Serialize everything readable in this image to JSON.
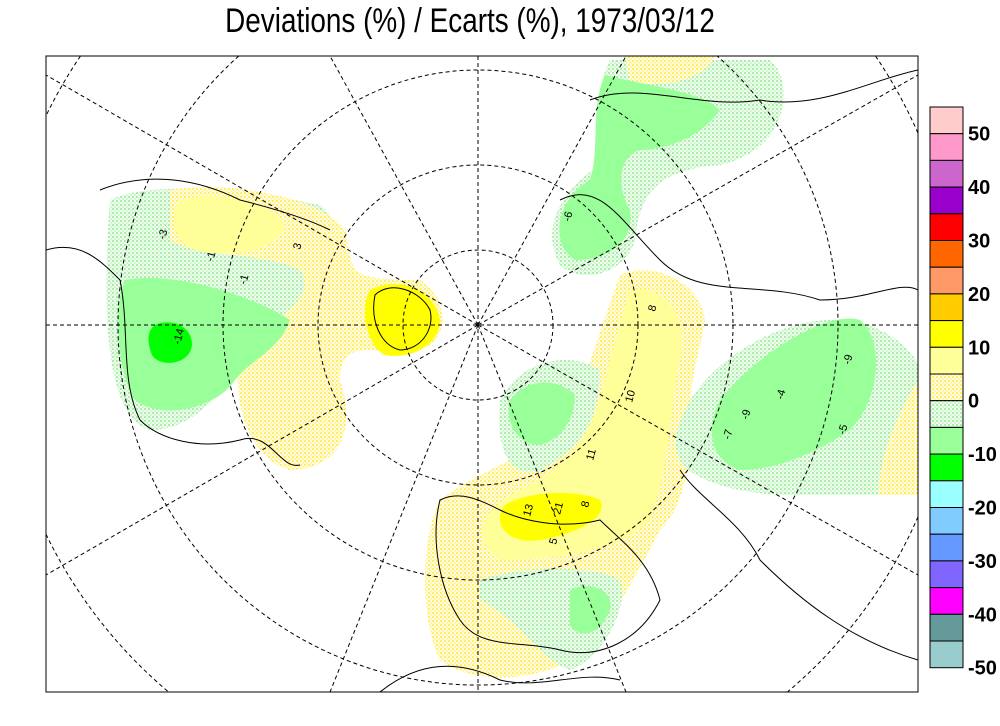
{
  "title": "Deviations (%) / Ecarts (%), 1973/03/12",
  "legend": {
    "labels": [
      "50",
      "40",
      "30",
      "20",
      "10",
      "0",
      "-10",
      "-20",
      "-30",
      "-40",
      "-50"
    ],
    "colors": [
      "#ffcccc",
      "#ff99cc",
      "#cc66cc",
      "#9900cc",
      "#ff0000",
      "#ff6600",
      "#ff9966",
      "#ffcc00",
      "#ffff00",
      "#ffff99",
      "dots-yellow",
      "dots-green",
      "#99ff99",
      "#00ff00",
      "#99ffff",
      "#80ccff",
      "#6699ff",
      "#8066ff",
      "#ff00ff",
      "#669999",
      "#99cccc"
    ]
  },
  "stations": [
    {
      "value": "-3",
      "region": "canada"
    },
    {
      "value": "-1",
      "region": "canada"
    },
    {
      "value": "-1",
      "region": "canada"
    },
    {
      "value": "3",
      "region": "canada"
    },
    {
      "value": "-14",
      "region": "canada"
    },
    {
      "value": "-6",
      "region": "north"
    },
    {
      "value": "8",
      "region": "north"
    },
    {
      "value": "10",
      "region": "europe"
    },
    {
      "value": "11",
      "region": "europe"
    },
    {
      "value": "13",
      "region": "europe"
    },
    {
      "value": "21",
      "region": "europe"
    },
    {
      "value": "8",
      "region": "europe"
    },
    {
      "value": "5",
      "region": "europe"
    },
    {
      "value": "-9",
      "region": "asia"
    },
    {
      "value": "-4",
      "region": "asia"
    },
    {
      "value": "-9",
      "region": "asia"
    },
    {
      "value": "-7",
      "region": "asia"
    },
    {
      "value": "-5",
      "region": "asia"
    }
  ]
}
